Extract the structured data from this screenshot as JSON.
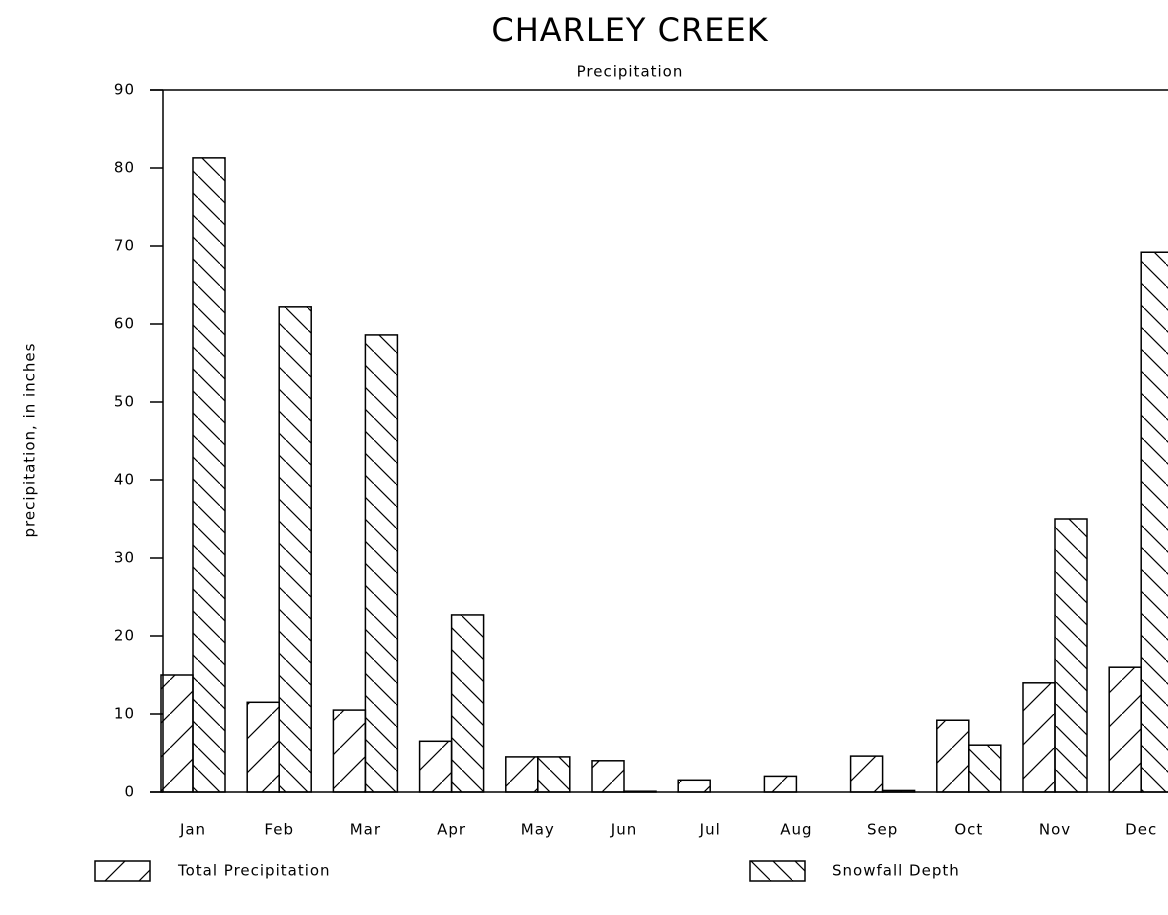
{
  "chart_data": {
    "type": "bar",
    "title": "CHARLEY CREEK",
    "subtitle": "Precipitation",
    "y_label": "precipitation, in inches",
    "categories": [
      "Jan",
      "Feb",
      "Mar",
      "Apr",
      "May",
      "Jun",
      "Jul",
      "Aug",
      "Sep",
      "Oct",
      "Nov",
      "Dec"
    ],
    "series": [
      {
        "name": "Total Precipitation",
        "color": "#000000",
        "values": [
          15,
          11.5,
          10.5,
          6.5,
          4.5,
          4,
          1.5,
          2,
          4.6,
          9.2,
          14,
          16
        ]
      },
      {
        "name": "Snowfall Depth",
        "color": "#000000",
        "values": [
          81.3,
          62.2,
          58.6,
          22.7,
          4.5,
          0.1,
          0,
          0,
          0.2,
          6,
          35,
          69.2
        ]
      }
    ],
    "ylim": [
      0,
      90
    ],
    "yticks": [
      0,
      10,
      20,
      30,
      40,
      50,
      60,
      70,
      80,
      90
    ]
  }
}
